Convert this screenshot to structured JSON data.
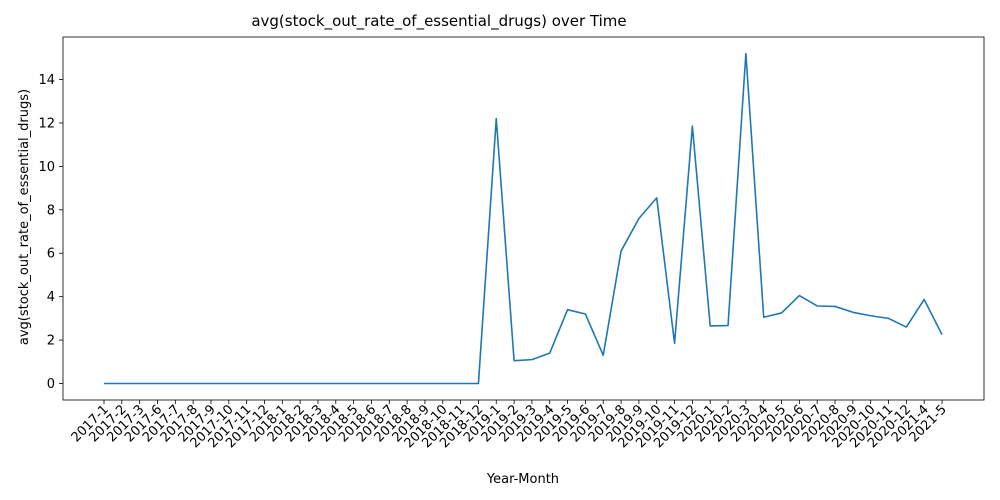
{
  "chart_data": {
    "type": "line",
    "title": "avg(stock_out_rate_of_essential_drugs) over Time",
    "xlabel": "Year-Month",
    "ylabel": "avg(stock_out_rate_of_essential_drugs)",
    "ylim": [
      -0.76,
      15.96
    ],
    "yticks": [
      0,
      2,
      4,
      6,
      8,
      10,
      12,
      14
    ],
    "grid": false,
    "line_color": "#1f77b4",
    "series": [
      {
        "x": [
          "2017-1",
          "2017-2",
          "2017-3",
          "2017-6",
          "2017-7",
          "2017-8",
          "2017-9",
          "2017-10",
          "2017-11",
          "2017-12",
          "2018-1",
          "2018-2",
          "2018-3",
          "2018-4",
          "2018-5",
          "2018-6",
          "2018-7",
          "2018-8",
          "2018-9",
          "2018-10",
          "2018-11",
          "2018-12",
          "2019-1",
          "2019-2",
          "2019-3",
          "2019-4",
          "2019-5",
          "2019-6",
          "2019-7",
          "2019-8",
          "2019-9",
          "2019-10",
          "2019-11",
          "2019-12",
          "2020-1",
          "2020-2",
          "2020-3",
          "2020-4",
          "2020-5",
          "2020-6",
          "2020-7",
          "2020-8",
          "2020-9",
          "2020-10",
          "2020-11",
          "2020-12",
          "2021-4",
          "2021-5"
        ],
        "values": [
          0,
          0,
          0,
          0,
          0,
          0,
          0,
          0,
          0,
          0,
          0,
          0,
          0,
          0,
          0,
          0,
          0,
          0,
          0,
          0,
          0,
          0,
          12.2,
          1.05,
          1.1,
          1.4,
          3.4,
          3.2,
          1.3,
          6.1,
          7.6,
          8.55,
          1.85,
          11.85,
          2.65,
          2.67,
          15.2,
          3.05,
          3.25,
          4.05,
          3.57,
          3.55,
          3.28,
          3.12,
          3.0,
          2.6,
          3.87,
          2.25
        ]
      }
    ]
  }
}
